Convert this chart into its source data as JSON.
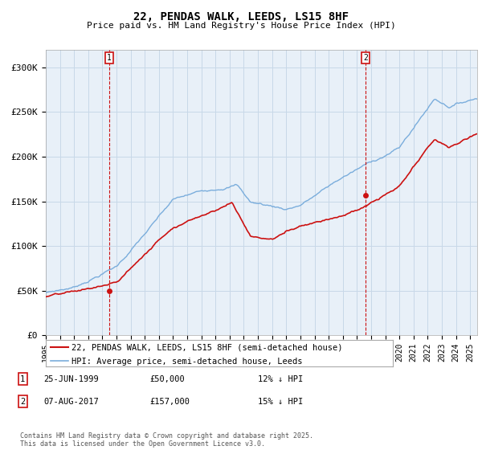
{
  "title": "22, PENDAS WALK, LEEDS, LS15 8HF",
  "subtitle": "Price paid vs. HM Land Registry's House Price Index (HPI)",
  "hpi_label": "HPI: Average price, semi-detached house, Leeds",
  "property_label": "22, PENDAS WALK, LEEDS, LS15 8HF (semi-detached house)",
  "annotation1_date": "25-JUN-1999",
  "annotation1_price": "£50,000",
  "annotation1_hpi": "12% ↓ HPI",
  "annotation1_year": 1999.49,
  "annotation1_value": 50000,
  "annotation2_date": "07-AUG-2017",
  "annotation2_price": "£157,000",
  "annotation2_hpi": "15% ↓ HPI",
  "annotation2_year": 2017.6,
  "annotation2_value": 157000,
  "ylim": [
    0,
    320000
  ],
  "yticks": [
    0,
    50000,
    100000,
    150000,
    200000,
    250000,
    300000
  ],
  "ytick_labels": [
    "£0",
    "£50K",
    "£100K",
    "£150K",
    "£200K",
    "£250K",
    "£300K"
  ],
  "hpi_color": "#7aaddc",
  "property_color": "#cc1111",
  "annotation_color": "#cc1111",
  "grid_color": "#c8d8e8",
  "chart_bg": "#e8f0f8",
  "background_color": "#ffffff",
  "footer": "Contains HM Land Registry data © Crown copyright and database right 2025.\nThis data is licensed under the Open Government Licence v3.0.",
  "xmin": 1995.0,
  "xmax": 2025.5
}
